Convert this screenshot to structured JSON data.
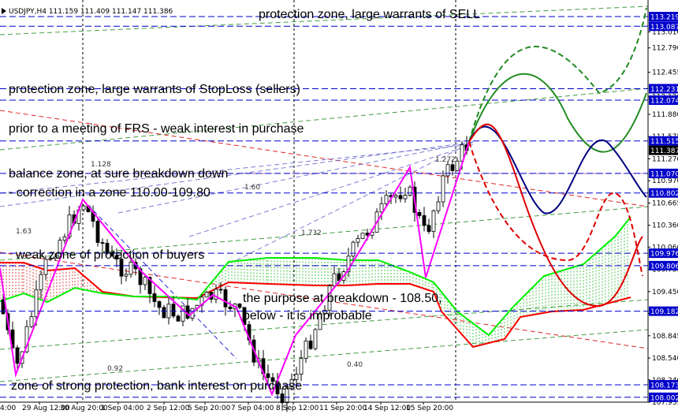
{
  "header": {
    "symbol_info": "USDJPY,H4  111.159 111.409 111.147 111.386"
  },
  "chart_data": {
    "type": "line",
    "title": "",
    "ylim": [
      107.935,
      113.36
    ],
    "y_ticks": [
      "113.010",
      "112.790",
      "112.455",
      "112.120",
      "111.880",
      "111.575",
      "111.270",
      "110.970",
      "110.665",
      "110.360",
      "110.060",
      "109.755",
      "109.450",
      "109.150",
      "108.845",
      "108.540",
      "108.240",
      "107.935"
    ],
    "x_ticks": [
      "29 Aug 12:00",
      "30 Aug 20:00",
      "1 Sep 04:00",
      "2 Sep 12:00",
      "5 Sep 20:00",
      "7 Sep 04:00",
      "8 Sep 12:00",
      "11 Sep 20:00",
      "14 Sep 12:00",
      "15 Sep 20:00"
    ],
    "x_left_partial": "4:00",
    "levels": [
      {
        "value": 113.219,
        "label": "113.219"
      },
      {
        "value": 113.087,
        "label": "113.087"
      },
      {
        "value": 112.231,
        "label": "112.231"
      },
      {
        "value": 112.074,
        "label": "112.074"
      },
      {
        "value": 111.515,
        "label": "111.515"
      },
      {
        "value": 111.07,
        "label": "111.070"
      },
      {
        "value": 110.802,
        "label": "110.802"
      },
      {
        "value": 109.976,
        "label": "109.976"
      },
      {
        "value": 109.806,
        "label": "109.806"
      },
      {
        "value": 109.182,
        "label": "109.182"
      },
      {
        "value": 108.173,
        "label": "108.173"
      },
      {
        "value": 108.002,
        "label": "108.002"
      }
    ],
    "current_price": {
      "value": 111.387,
      "label": "111.387"
    },
    "annotations": [
      {
        "id": "sell",
        "text": "protection zone, large warrants of SELL"
      },
      {
        "id": "stoploss",
        "text": "protection zone, large warrants of StopLoss (sellers)"
      },
      {
        "id": "frs",
        "text": "prior to a meeting of FRS - weak interest in purchase"
      },
      {
        "id": "balance1",
        "text": "balance zone, at sure breakdown down"
      },
      {
        "id": "balance2",
        "text": "- correction in a zone 110.00-109.80"
      },
      {
        "id": "weak",
        "text": "weak zone of protection of buyers"
      },
      {
        "id": "purpose1",
        "text": "the purpose at breakdown - 108.50,"
      },
      {
        "id": "purpose2",
        "text": "below - it is improbable"
      },
      {
        "id": "strong",
        "text": "zone of strong protection, bank interest on purchase"
      }
    ],
    "fib_labels": [
      "1.128",
      "1.272",
      "1.732",
      "1.63",
      "0.40",
      "0.92",
      "1.60"
    ],
    "colors": {
      "level_line": "#0000cc",
      "current_box": "#000000",
      "level_box": "#0000cc",
      "zigzag": "#ff00ff",
      "senkou_a": "#ff0000",
      "senkou_b": "#00ee00",
      "forecast_green": "#228b22",
      "forecast_red": "#e00000",
      "forecast_navy": "#000080"
    }
  }
}
